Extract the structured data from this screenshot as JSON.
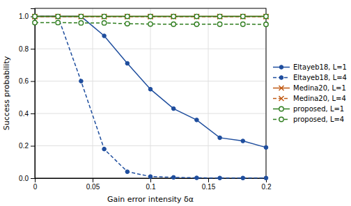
{
  "chart_data": {
    "type": "line",
    "x": [
      0,
      0.02,
      0.04,
      0.06,
      0.08,
      0.1,
      0.12,
      0.14,
      0.16,
      0.18,
      0.2
    ],
    "series": [
      {
        "name": "Eltayeb18, L=1",
        "color": "#1f4e9e",
        "marker": "circle",
        "line_style": "solid",
        "values": [
          1.0,
          1.0,
          1.0,
          0.88,
          0.71,
          0.55,
          0.43,
          0.36,
          0.25,
          0.23,
          0.19
        ]
      },
      {
        "name": "Eltayeb18, L=4",
        "color": "#1f4e9e",
        "marker": "circle",
        "line_style": "dashed",
        "values": [
          1.0,
          1.0,
          0.6,
          0.18,
          0.04,
          0.01,
          0.005,
          0.002,
          0.001,
          0.001,
          0.001
        ]
      },
      {
        "name": "Medina20, L=1",
        "color": "#c05a14",
        "marker": "x",
        "line_style": "solid",
        "values": [
          1.0,
          1.0,
          1.0,
          1.0,
          1.0,
          1.0,
          1.0,
          1.0,
          1.0,
          1.0,
          1.0
        ]
      },
      {
        "name": "Medina20, L=4",
        "color": "#c05a14",
        "marker": "x",
        "line_style": "dashed",
        "values": [
          0.998,
          0.998,
          0.998,
          0.998,
          0.998,
          0.998,
          0.998,
          0.998,
          0.998,
          0.998,
          0.998
        ]
      },
      {
        "name": "proposed, L=1",
        "color": "#2e7d1e",
        "marker": "open-circle",
        "line_style": "solid",
        "values": [
          1.0,
          1.0,
          1.0,
          1.0,
          1.0,
          1.0,
          1.0,
          1.0,
          1.0,
          1.0,
          1.0
        ]
      },
      {
        "name": "proposed, L=4",
        "color": "#2e7d1e",
        "marker": "open-circle",
        "line_style": "dashed",
        "values": [
          0.962,
          0.962,
          0.96,
          0.96,
          0.955,
          0.953,
          0.952,
          0.952,
          0.952,
          0.952,
          0.951
        ]
      }
    ],
    "xlabel": "Gain error intensity δα",
    "ylabel": "Success probability",
    "xlim": [
      0,
      0.2
    ],
    "ylim": [
      0,
      1.05
    ],
    "xticks": [
      0,
      0.05,
      0.1,
      0.15,
      0.2
    ],
    "yticks": [
      {
        "value": 0,
        "label": "0.0"
      },
      0.2,
      0.4,
      0.6,
      0.8,
      {
        "value": 1,
        "label": "1.0"
      }
    ],
    "grid": true,
    "legend": "right"
  }
}
